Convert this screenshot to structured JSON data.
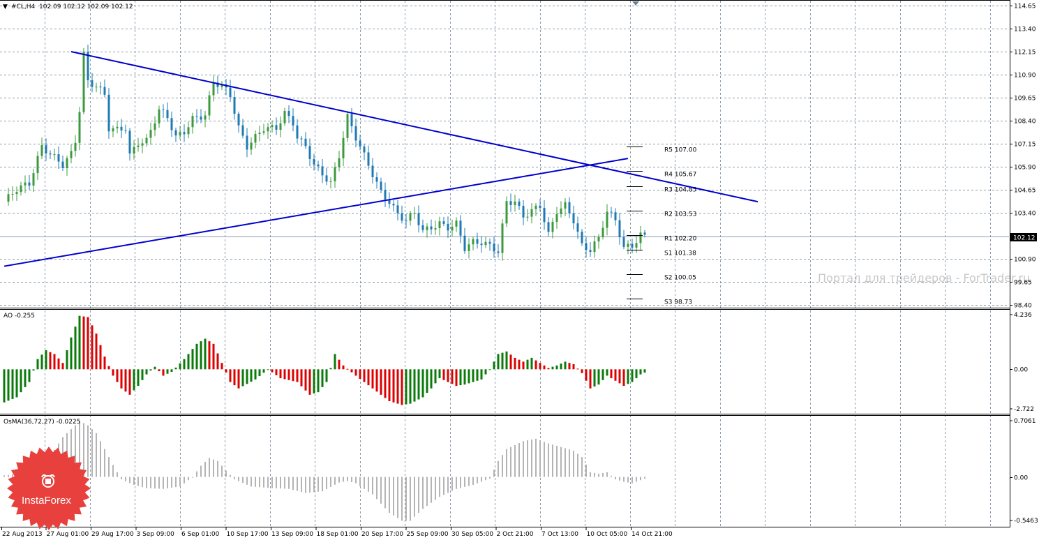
{
  "header": {
    "symbol_label": "#CL,H4",
    "ohlc_text": "102.09 102.12 102.09 102.12",
    "arrow_glyph": "▼"
  },
  "watermark": "Портал для трейдеров - ForTrader.ru",
  "logo": {
    "text": "InstaForex",
    "color": "#e8403c"
  },
  "colors": {
    "bull": "#3c9a3c",
    "bear": "#1e7ab4",
    "trend": "#0000cc",
    "ao_up": "#0a7a0a",
    "ao_down": "#dd0000",
    "osma": "#b4b4b4"
  },
  "chart_data": [
    {
      "type": "candlestick",
      "title": "#CL,H4",
      "current_price": "102.12",
      "ylim": [
        98.4,
        114.65
      ],
      "y_ticks": [
        "114.65",
        "113.40",
        "112.15",
        "110.90",
        "109.65",
        "108.40",
        "107.15",
        "105.90",
        "104.65",
        "103.40",
        "102.12",
        "100.90",
        "99.65",
        "98.40"
      ],
      "x_ticks": [
        "22 Aug 2013",
        "27 Aug 01:00",
        "29 Aug 17:00",
        "3 Sep 09:00",
        "6 Sep 01:00",
        "10 Sep 17:00",
        "13 Sep 09:00",
        "18 Sep 01:00",
        "20 Sep 17:00",
        "25 Sep 09:00",
        "30 Sep 05:00",
        "2 Oct 21:00",
        "7 Oct 13:00",
        "10 Oct 05:00",
        "14 Oct 21:00"
      ],
      "close_path": [
        [
          0,
          104.0
        ],
        [
          3,
          104.7
        ],
        [
          6,
          105.0
        ],
        [
          9,
          107.0
        ],
        [
          12,
          106.4
        ],
        [
          14,
          106.0
        ],
        [
          16,
          106.6
        ],
        [
          17,
          107.3
        ],
        [
          18,
          109.0
        ],
        [
          19,
          112.0
        ],
        [
          20,
          110.5
        ],
        [
          22,
          110.3
        ],
        [
          24,
          109.8
        ],
        [
          25,
          108.0
        ],
        [
          27,
          107.9
        ],
        [
          29,
          108.0
        ],
        [
          30,
          106.5
        ],
        [
          32,
          107.2
        ],
        [
          34,
          107.3
        ],
        [
          37,
          109.0
        ],
        [
          39,
          108.6
        ],
        [
          41,
          107.5
        ],
        [
          43,
          107.8
        ],
        [
          45,
          108.5
        ],
        [
          48,
          108.7
        ],
        [
          50,
          110.5
        ],
        [
          52,
          110.3
        ],
        [
          54,
          109.8
        ],
        [
          56,
          108.0
        ],
        [
          58,
          107.0
        ],
        [
          60,
          107.5
        ],
        [
          62,
          108.0
        ],
        [
          65,
          108.0
        ],
        [
          67,
          108.8
        ],
        [
          69,
          108.3
        ],
        [
          70,
          107.5
        ],
        [
          72,
          107.0
        ],
        [
          74,
          106.0
        ],
        [
          76,
          105.5
        ],
        [
          78,
          105.0
        ],
        [
          80,
          106.5
        ],
        [
          82,
          108.6
        ],
        [
          84,
          107.5
        ],
        [
          86,
          106.5
        ],
        [
          88,
          105.5
        ],
        [
          90,
          104.5
        ],
        [
          92,
          104.0
        ],
        [
          94,
          103.3
        ],
        [
          96,
          103.0
        ],
        [
          98,
          103.4
        ],
        [
          100,
          102.4
        ],
        [
          102,
          102.6
        ],
        [
          104,
          102.8
        ],
        [
          106,
          102.6
        ],
        [
          108,
          102.8
        ],
        [
          110,
          101.5
        ],
        [
          112,
          101.8
        ],
        [
          114,
          101.8
        ],
        [
          116,
          101.6
        ],
        [
          118,
          101.3
        ],
        [
          120,
          104.0
        ],
        [
          122,
          104.0
        ],
        [
          124,
          103.2
        ],
        [
          126,
          103.5
        ],
        [
          128,
          103.8
        ],
        [
          130,
          102.2
        ],
        [
          132,
          103.5
        ],
        [
          134,
          103.8
        ],
        [
          136,
          103.0
        ],
        [
          138,
          101.6
        ],
        [
          140,
          101.4
        ],
        [
          142,
          102.0
        ],
        [
          144,
          103.5
        ],
        [
          146,
          103.0
        ],
        [
          148,
          101.5
        ],
        [
          150,
          101.6
        ],
        [
          152,
          102.2
        ],
        [
          153,
          102.1
        ]
      ],
      "trendlines": [
        {
          "from": [
            16,
            112.15
          ],
          "to": [
            180,
            104.0
          ]
        },
        {
          "from": [
            0,
            100.5
          ],
          "to": [
            149,
            106.35
          ]
        }
      ],
      "pivots": [
        {
          "label": "R5 107.00",
          "value": 107.0
        },
        {
          "label": "R4 105.67",
          "value": 105.67
        },
        {
          "label": "R3 104.85",
          "value": 104.85
        },
        {
          "label": "R2 103.53",
          "value": 103.53
        },
        {
          "label": "R1 102.20",
          "value": 102.2
        },
        {
          "label": "S1 101.38",
          "value": 101.38
        },
        {
          "label": "S2 100.05",
          "value": 100.05
        },
        {
          "label": "S3 98.73",
          "value": 98.73
        }
      ]
    },
    {
      "type": "bar",
      "title": "AO -0.255",
      "ylim": [
        -2.722,
        4.236
      ],
      "y_ticks": [
        "4.236",
        "0.00",
        "-2.722"
      ],
      "path": [
        [
          0,
          -2.6
        ],
        [
          3,
          -2.2
        ],
        [
          6,
          -1.0
        ],
        [
          8,
          0.8
        ],
        [
          10,
          1.5
        ],
        [
          12,
          1.2
        ],
        [
          14,
          0.5
        ],
        [
          16,
          2.5
        ],
        [
          18,
          4.2
        ],
        [
          20,
          4.1
        ],
        [
          22,
          2.8
        ],
        [
          24,
          1.0
        ],
        [
          26,
          -0.5
        ],
        [
          28,
          -1.5
        ],
        [
          30,
          -2.0
        ],
        [
          32,
          -1.3
        ],
        [
          34,
          -0.4
        ],
        [
          36,
          0.2
        ],
        [
          38,
          -0.5
        ],
        [
          40,
          -0.2
        ],
        [
          43,
          0.8
        ],
        [
          46,
          2.0
        ],
        [
          48,
          2.4
        ],
        [
          50,
          2.0
        ],
        [
          52,
          0.5
        ],
        [
          54,
          -1.0
        ],
        [
          56,
          -1.5
        ],
        [
          60,
          -0.8
        ],
        [
          63,
          0.0
        ],
        [
          66,
          -0.7
        ],
        [
          70,
          -1.0
        ],
        [
          73,
          -2.0
        ],
        [
          75,
          -1.8
        ],
        [
          77,
          -1.0
        ],
        [
          79,
          1.2
        ],
        [
          81,
          0.3
        ],
        [
          84,
          -0.5
        ],
        [
          88,
          -1.5
        ],
        [
          92,
          -2.5
        ],
        [
          95,
          -2.8
        ],
        [
          97,
          -2.7
        ],
        [
          100,
          -2.2
        ],
        [
          102,
          -1.5
        ],
        [
          104,
          -0.7
        ],
        [
          106,
          -1.0
        ],
        [
          108,
          -1.3
        ],
        [
          110,
          -1.2
        ],
        [
          112,
          -1.0
        ],
        [
          114,
          -0.8
        ],
        [
          116,
          0.0
        ],
        [
          118,
          1.2
        ],
        [
          120,
          1.4
        ],
        [
          122,
          0.9
        ],
        [
          124,
          0.6
        ],
        [
          126,
          0.9
        ],
        [
          128,
          0.5
        ],
        [
          130,
          0.1
        ],
        [
          132,
          0.3
        ],
        [
          134,
          0.6
        ],
        [
          136,
          0.4
        ],
        [
          138,
          -0.3
        ],
        [
          140,
          -1.5
        ],
        [
          142,
          -1.2
        ],
        [
          144,
          -0.5
        ],
        [
          146,
          -0.9
        ],
        [
          148,
          -1.3
        ],
        [
          150,
          -1.0
        ],
        [
          152,
          -0.4
        ],
        [
          153,
          -0.255
        ]
      ]
    },
    {
      "type": "bar",
      "title": "OsMA(36,72,27) -0.0225",
      "ylim": [
        -0.5463,
        0.7061
      ],
      "y_ticks": [
        "0.7061",
        "0.00",
        "-0.5463"
      ],
      "path": [
        [
          0,
          0.02
        ],
        [
          5,
          0.05
        ],
        [
          10,
          0.18
        ],
        [
          14,
          0.5
        ],
        [
          16,
          0.6
        ],
        [
          18,
          0.7
        ],
        [
          20,
          0.65
        ],
        [
          22,
          0.55
        ],
        [
          24,
          0.35
        ],
        [
          26,
          0.15
        ],
        [
          28,
          -0.03
        ],
        [
          31,
          -0.1
        ],
        [
          34,
          -0.14
        ],
        [
          38,
          -0.15
        ],
        [
          42,
          -0.12
        ],
        [
          45,
          0.0
        ],
        [
          47,
          0.14
        ],
        [
          49,
          0.24
        ],
        [
          51,
          0.2
        ],
        [
          53,
          0.08
        ],
        [
          55,
          -0.03
        ],
        [
          59,
          -0.12
        ],
        [
          64,
          -0.14
        ],
        [
          68,
          -0.15
        ],
        [
          72,
          -0.2
        ],
        [
          76,
          -0.18
        ],
        [
          80,
          -0.07
        ],
        [
          82,
          -0.05
        ],
        [
          84,
          -0.08
        ],
        [
          88,
          -0.22
        ],
        [
          92,
          -0.45
        ],
        [
          95,
          -0.55
        ],
        [
          97,
          -0.55
        ],
        [
          100,
          -0.4
        ],
        [
          104,
          -0.25
        ],
        [
          108,
          -0.15
        ],
        [
          112,
          -0.1
        ],
        [
          116,
          -0.02
        ],
        [
          118,
          0.2
        ],
        [
          120,
          0.35
        ],
        [
          124,
          0.45
        ],
        [
          127,
          0.48
        ],
        [
          130,
          0.42
        ],
        [
          134,
          0.36
        ],
        [
          136,
          0.33
        ],
        [
          138,
          0.25
        ],
        [
          140,
          0.06
        ],
        [
          142,
          0.04
        ],
        [
          144,
          0.06
        ],
        [
          146,
          -0.03
        ],
        [
          148,
          -0.06
        ],
        [
          150,
          -0.08
        ],
        [
          152,
          -0.04
        ],
        [
          153,
          -0.0225
        ]
      ]
    }
  ]
}
